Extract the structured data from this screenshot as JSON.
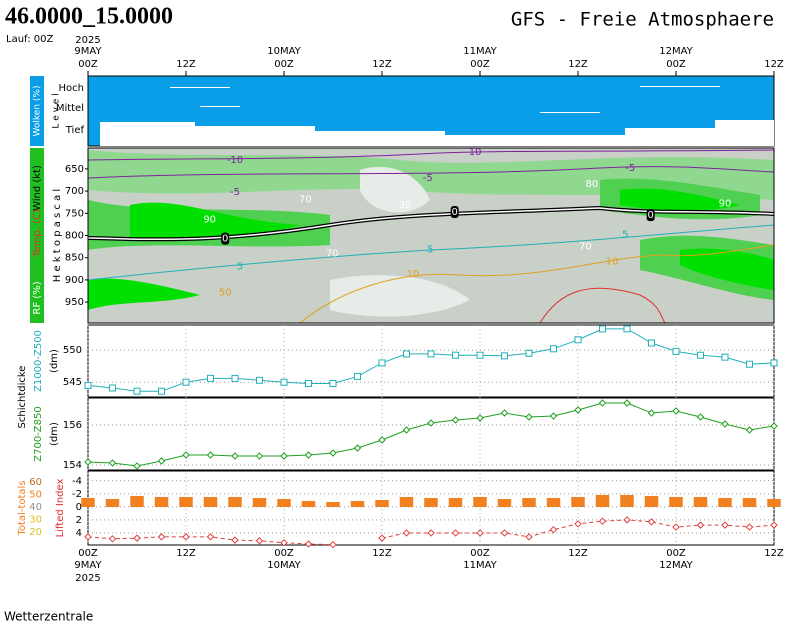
{
  "header": {
    "location": "46.0000_15.0000",
    "run": "Lauf: 00Z",
    "title": "GFS - Freie Atmosphaere",
    "footer": "Wetterzentrale"
  },
  "clouds": {
    "label": "Wolken (%)",
    "axis_label": "L e v e l",
    "levels": [
      "Hoch",
      "Mittel",
      "Tief"
    ]
  },
  "time_axis": {
    "xlim": [
      0,
      84
    ],
    "year": "2025",
    "xticks": [
      {
        "value": 0,
        "label": "00Z"
      },
      {
        "value": 12,
        "label": "12Z"
      },
      {
        "value": 24,
        "label": "00Z"
      },
      {
        "value": 36,
        "label": "12Z"
      },
      {
        "value": 48,
        "label": "00Z"
      },
      {
        "value": 60,
        "label": "12Z"
      },
      {
        "value": 72,
        "label": "00Z"
      },
      {
        "value": 84,
        "label": "12Z"
      }
    ],
    "days": [
      {
        "value": 0,
        "label": "9MAY"
      },
      {
        "value": 24,
        "label": "10MAY"
      },
      {
        "value": 48,
        "label": "11MAY"
      },
      {
        "value": 72,
        "label": "12MAY"
      }
    ]
  },
  "chart_data": [
    {
      "type": "contour",
      "ylabel": "H e k t o p a s c a l",
      "labels": [
        "Wind (kt)",
        "Temp. (C)",
        "RF (%)"
      ],
      "label_colors": [
        "#000000",
        "#e03030",
        "#20a020"
      ],
      "ylim": [
        997,
        603
      ],
      "yticks": [
        650,
        700,
        750,
        800,
        850,
        900,
        950
      ],
      "annotations": [
        {
          "text": "-10",
          "x": 18,
          "y": 630,
          "color": "#8020a0"
        },
        {
          "text": "-5",
          "x": 18,
          "y": 702,
          "color": "#8020a0"
        },
        {
          "text": "-5",
          "x": 41.6,
          "y": 670,
          "color": "#8020a0"
        },
        {
          "text": "-5",
          "x": 66.4,
          "y": 648,
          "color": "#8020a0"
        },
        {
          "text": "10",
          "x": 47.4,
          "y": 612,
          "color": "#8020a0"
        },
        {
          "text": "70",
          "x": 26.6,
          "y": 719,
          "color": "#ffffff"
        },
        {
          "text": "90",
          "x": 14.9,
          "y": 764,
          "color": "#ffffff"
        },
        {
          "text": "90",
          "x": 78,
          "y": 728,
          "color": "#ffffff"
        },
        {
          "text": "80",
          "x": 61.7,
          "y": 684,
          "color": "#ffffff"
        },
        {
          "text": "30",
          "x": 38.8,
          "y": 731,
          "color": "#ffffff"
        },
        {
          "text": "0",
          "x": 16.8,
          "y": 807,
          "color": "#000000"
        },
        {
          "text": "0",
          "x": 44.9,
          "y": 747,
          "color": "#000000"
        },
        {
          "text": "0",
          "x": 68.9,
          "y": 754,
          "color": "#000000"
        },
        {
          "text": "5",
          "x": 18.6,
          "y": 870,
          "color": "#20b0b8"
        },
        {
          "text": "5",
          "x": 41.9,
          "y": 831,
          "color": "#20b0b8"
        },
        {
          "text": "5",
          "x": 65.8,
          "y": 798,
          "color": "#20b0b8"
        },
        {
          "text": "70",
          "x": 29.9,
          "y": 840,
          "color": "#ffffff"
        },
        {
          "text": "70",
          "x": 60.9,
          "y": 825,
          "color": "#ffffff"
        },
        {
          "text": "10",
          "x": 39.8,
          "y": 887,
          "color": "#e0a020"
        },
        {
          "text": "10",
          "x": 64.2,
          "y": 858,
          "color": "#e0a020"
        },
        {
          "text": "50",
          "x": 16.8,
          "y": 928,
          "color": "#e0a020"
        }
      ]
    },
    {
      "type": "line",
      "title": "Schichtdicke",
      "ylabel": "Z1000-Z500",
      "unit": "(dm)",
      "color": "#20b0b8",
      "marker": "square",
      "ylim": [
        542.7,
        553.9
      ],
      "yticks": [
        545,
        550
      ],
      "grid": true,
      "x": [
        0,
        3,
        6,
        9,
        12,
        15,
        18,
        21,
        24,
        27,
        30,
        33,
        36,
        39,
        42,
        45,
        48,
        51,
        54,
        57,
        60,
        63,
        66,
        69,
        72,
        75,
        78,
        81,
        84
      ],
      "values": [
        544.5,
        544.1,
        543.6,
        543.6,
        545,
        545.6,
        545.6,
        545.3,
        545,
        544.8,
        544.8,
        545.9,
        548,
        549.4,
        549.4,
        549.2,
        549.2,
        549.1,
        549.5,
        550.2,
        551.6,
        553.3,
        553.3,
        551.1,
        549.8,
        549.2,
        548.9,
        547.8,
        548
      ]
    },
    {
      "type": "line",
      "ylabel": "Z700-Z850",
      "unit": "(dm)",
      "color": "#20a020",
      "marker": "diamond",
      "ylim": [
        153.75,
        157.35
      ],
      "yticks": [
        154,
        156
      ],
      "grid": true,
      "x": [
        0,
        3,
        6,
        9,
        12,
        15,
        18,
        21,
        24,
        27,
        30,
        33,
        36,
        39,
        42,
        45,
        48,
        51,
        54,
        57,
        60,
        63,
        66,
        69,
        72,
        75,
        78,
        81,
        84
      ],
      "values": [
        154.15,
        154.1,
        153.95,
        154.2,
        154.5,
        154.5,
        154.45,
        154.45,
        154.45,
        154.5,
        154.6,
        154.85,
        155.25,
        155.75,
        156.1,
        156.25,
        156.35,
        156.6,
        156.4,
        156.45,
        156.75,
        157.1,
        157.1,
        156.6,
        156.7,
        156.4,
        156.05,
        155.75,
        155.95
      ]
    },
    {
      "type": "combo",
      "ylabel": "Lifted Index",
      "y2label": "Total-totals",
      "ylabel_color": "#e03030",
      "y2label_color": "#f08020",
      "ylim": [
        5.85,
        -5.5
      ],
      "yticks": [
        -4,
        -2,
        0,
        2,
        4
      ],
      "y2lim": [
        9.6,
        68.8
      ],
      "y2ticks": [
        60,
        50,
        40,
        30,
        20
      ],
      "y2tick_colors": [
        "#c07020",
        "#f08020",
        "#909090",
        "#e0c020",
        "#e0c020"
      ],
      "x": [
        0,
        3,
        6,
        9,
        12,
        15,
        18,
        21,
        24,
        27,
        30,
        33,
        36,
        39,
        42,
        45,
        48,
        51,
        54,
        57,
        60,
        63,
        66,
        69,
        72,
        75,
        78,
        81,
        84
      ],
      "series": [
        {
          "name": "Total-totals",
          "axis": "y2",
          "kind": "bar",
          "base": 40,
          "color": "#f08020",
          "values": [
            47.2,
            46.4,
            48.8,
            48,
            48,
            48,
            48,
            47.2,
            46.4,
            44.8,
            44,
            44.8,
            45.6,
            48,
            47.2,
            47.2,
            48,
            46.4,
            47.2,
            47.2,
            48,
            49.6,
            49.6,
            48.8,
            48,
            48,
            47.2,
            47.2,
            46.4
          ]
        },
        {
          "name": "Lifted Index",
          "kind": "line",
          "color": "#e04040",
          "values": [
            4.6,
            4.9,
            4.8,
            4.6,
            4.6,
            4.6,
            5.1,
            5.2,
            5.5,
            5.7,
            5.8,
            null,
            4.8,
            4.0,
            4.0,
            4.0,
            4.0,
            4.0,
            4.6,
            3.5,
            2.6,
            2.2,
            2.0,
            2.3,
            3.1,
            2.8,
            2.8,
            3.1,
            2.8
          ]
        }
      ]
    }
  ]
}
